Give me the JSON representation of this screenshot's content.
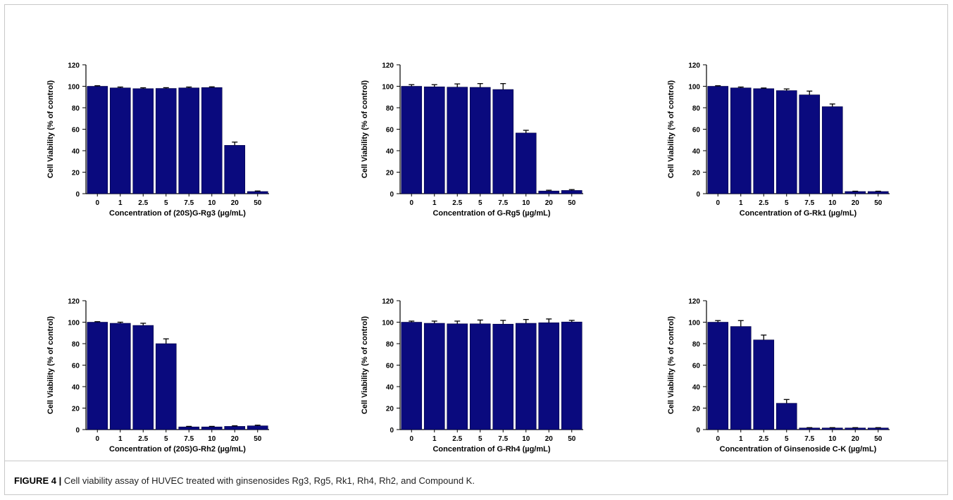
{
  "figure_label": "FIGURE 4 |",
  "caption_text": "Cell viability assay of HUVEC treated with ginsenosides Rg3, Rg5, Rk1, Rh4, Rh2, and Compound K.",
  "colors": {
    "bar": "#0a0a7e",
    "axis": "#000000"
  },
  "chart_data": [
    {
      "type": "bar",
      "ylabel": "Cell Viability (% of control)",
      "xlabel": "Concentration of (20S)G-Rg3 (µg/mL)",
      "categories": [
        "0",
        "1",
        "2.5",
        "5",
        "7.5",
        "10",
        "20",
        "50"
      ],
      "values": [
        100,
        98.5,
        97.8,
        98.0,
        98.5,
        98.8,
        45,
        2
      ],
      "errors": [
        0.5,
        0.8,
        0.8,
        0.7,
        0.8,
        0.7,
        3,
        0.5
      ],
      "ylim": [
        0,
        120
      ],
      "yticks": [
        "0",
        "20",
        "40",
        "60",
        "80",
        "100",
        "120"
      ]
    },
    {
      "type": "bar",
      "ylabel": "Cell Viability (% of control)",
      "xlabel": "Concentration of G-Rg5 (µg/mL)",
      "categories": [
        "0",
        "1",
        "2.5",
        "5",
        "7.5",
        "10",
        "20",
        "50"
      ],
      "values": [
        100,
        99.5,
        99.2,
        99.0,
        97.0,
        56.5,
        2.5,
        3
      ],
      "errors": [
        1.5,
        2,
        3,
        3.5,
        5.5,
        2.5,
        0.7,
        0.8
      ],
      "ylim": [
        0,
        120
      ],
      "yticks": [
        "0",
        "20",
        "40",
        "60",
        "80",
        "100",
        "120"
      ]
    },
    {
      "type": "bar",
      "ylabel": "Cell Viability (% of control)",
      "xlabel": "Concentration of G-Rk1 (µg/mL)",
      "categories": [
        "0",
        "1",
        "2.5",
        "5",
        "7.5",
        "10",
        "20",
        "50"
      ],
      "values": [
        100,
        98.5,
        97.8,
        96.0,
        92.0,
        81.0,
        2,
        2
      ],
      "errors": [
        0.5,
        0.8,
        0.6,
        1.5,
        3.5,
        2.5,
        0.3,
        0.3
      ],
      "ylim": [
        0,
        120
      ],
      "yticks": [
        "0",
        "20",
        "40",
        "60",
        "80",
        "100",
        "120"
      ]
    },
    {
      "type": "bar",
      "ylabel": "Cell Viability (% of control)",
      "xlabel": "Concentration of (20S)G-Rh2 (µg/mL)",
      "categories": [
        "0",
        "1",
        "2.5",
        "5",
        "7.5",
        "10",
        "20",
        "50"
      ],
      "values": [
        100,
        99.0,
        97.0,
        80.0,
        2.5,
        2.5,
        3,
        3.5
      ],
      "errors": [
        0.5,
        1,
        2,
        4.5,
        0.5,
        0.5,
        0.5,
        0.6
      ],
      "ylim": [
        0,
        120
      ],
      "yticks": [
        "0",
        "20",
        "40",
        "60",
        "80",
        "100",
        "120"
      ]
    },
    {
      "type": "bar",
      "ylabel": "Cell Viability (% of control)",
      "xlabel": "Concentration of G-Rh4 (µg/mL)",
      "categories": [
        "0",
        "1",
        "2.5",
        "5",
        "7.5",
        "10",
        "20",
        "50"
      ],
      "values": [
        100,
        99.0,
        98.5,
        98.5,
        98.2,
        99.0,
        99.5,
        100.2
      ],
      "errors": [
        1,
        2,
        2.5,
        3.5,
        3.5,
        3.5,
        3.5,
        1.5
      ],
      "ylim": [
        0,
        120
      ],
      "yticks": [
        "0",
        "20",
        "40",
        "60",
        "80",
        "100",
        "120"
      ]
    },
    {
      "type": "bar",
      "ylabel": "Cell Viability (% of control)",
      "xlabel": "Concentration of Ginsenoside C-K (µg/mL)",
      "categories": [
        "0",
        "1",
        "2.5",
        "5",
        "7.5",
        "10",
        "20",
        "50"
      ],
      "values": [
        100,
        96.0,
        83.5,
        24.5,
        1.5,
        1.5,
        1.5,
        1.5
      ],
      "errors": [
        1.5,
        5.5,
        4.5,
        3.5,
        0.3,
        0.3,
        0.3,
        0.3
      ],
      "ylim": [
        0,
        120
      ],
      "yticks": [
        "0",
        "20",
        "40",
        "60",
        "80",
        "100",
        "120"
      ]
    }
  ]
}
